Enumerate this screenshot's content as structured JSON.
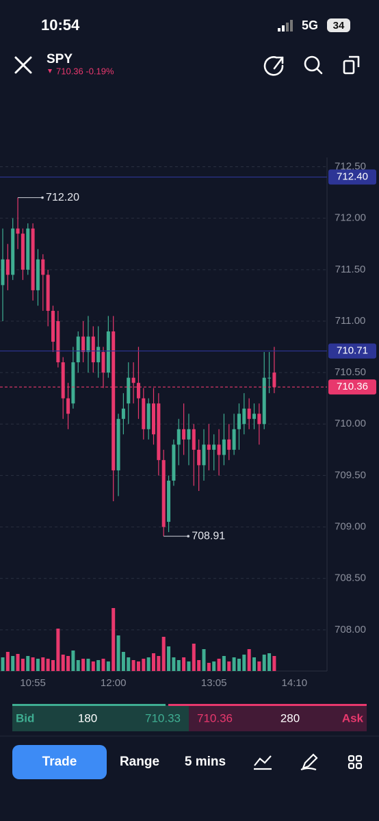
{
  "status_bar": {
    "time": "10:54",
    "network": "5G",
    "battery": "34"
  },
  "header": {
    "symbol": "SPY",
    "quote": "710.36 -0.19%"
  },
  "chart_data": {
    "type": "candlestick",
    "categories": [
      null,
      null,
      null,
      null,
      null,
      null,
      "10:55",
      null,
      null,
      null,
      null,
      null,
      null,
      null,
      null,
      null,
      null,
      null,
      null,
      null,
      null,
      null,
      "12:00",
      null,
      null,
      null,
      null,
      null,
      null,
      null,
      null,
      null,
      null,
      null,
      null,
      null,
      null,
      null,
      null,
      null,
      null,
      null,
      "13:05",
      null,
      null,
      null,
      null,
      null,
      null,
      null,
      null,
      null,
      null,
      null,
      null,
      null,
      null,
      null,
      "14:10"
    ],
    "open": [
      711.35,
      711.6,
      711.45,
      711.9,
      711.85,
      711.5,
      711.9,
      711.3,
      711.6,
      711.45,
      711.1,
      711.0,
      710.6,
      710.25,
      710.2,
      710.6,
      710.85,
      710.7,
      710.85,
      710.6,
      710.7,
      710.5,
      710.9,
      709.55,
      710.05,
      710.2,
      710.45,
      710.4,
      710.25,
      709.95,
      710.2,
      710.2,
      709.65,
      709.05,
      709.45,
      709.8,
      709.95,
      709.85,
      709.95,
      709.75,
      709.6,
      709.8,
      709.75,
      709.8,
      709.7,
      709.85,
      709.75,
      709.95,
      710.0,
      710.15,
      710.05,
      710.1,
      710.0,
      710.45,
      710.5,
      null,
      null,
      null,
      null
    ],
    "high": [
      711.9,
      711.75,
      712.0,
      712.2,
      711.9,
      711.95,
      711.95,
      711.7,
      711.65,
      711.5,
      711.15,
      711.1,
      710.65,
      710.4,
      710.75,
      710.9,
      711.0,
      711.05,
      710.95,
      710.95,
      710.75,
      711.05,
      711.05,
      710.1,
      710.3,
      710.6,
      710.6,
      710.75,
      710.35,
      710.25,
      710.35,
      710.3,
      709.75,
      709.5,
      709.85,
      710.05,
      710.2,
      710.1,
      710.0,
      709.85,
      709.95,
      710.0,
      709.9,
      709.95,
      710.1,
      710.0,
      710.1,
      710.2,
      710.3,
      710.25,
      710.2,
      710.2,
      710.7,
      710.7,
      710.75,
      null,
      null,
      null,
      null
    ],
    "low": [
      711.0,
      711.3,
      711.4,
      711.7,
      711.4,
      711.45,
      711.2,
      711.15,
      711.1,
      710.95,
      710.7,
      710.55,
      710.05,
      709.95,
      710.15,
      710.5,
      710.6,
      710.5,
      710.5,
      710.45,
      710.35,
      710.45,
      709.25,
      709.3,
      709.9,
      710.0,
      710.2,
      710.05,
      709.85,
      709.85,
      709.8,
      709.5,
      708.91,
      708.95,
      709.4,
      709.6,
      709.7,
      709.6,
      709.4,
      709.35,
      709.45,
      709.55,
      709.55,
      709.5,
      709.6,
      709.65,
      709.7,
      709.75,
      709.9,
      709.95,
      709.95,
      709.8,
      709.95,
      710.3,
      710.3,
      null,
      null,
      null,
      null
    ],
    "close": [
      711.6,
      711.45,
      711.9,
      711.85,
      711.5,
      711.9,
      711.3,
      711.6,
      711.45,
      711.1,
      710.8,
      710.6,
      710.25,
      710.1,
      710.6,
      710.85,
      710.7,
      710.85,
      710.6,
      710.75,
      710.5,
      710.9,
      709.55,
      710.05,
      710.15,
      710.45,
      710.4,
      710.25,
      709.95,
      710.2,
      709.9,
      709.65,
      709.0,
      709.45,
      709.8,
      709.95,
      709.85,
      709.95,
      709.75,
      709.6,
      709.8,
      709.75,
      709.8,
      709.7,
      709.85,
      709.75,
      709.95,
      710.1,
      710.15,
      710.05,
      710.1,
      710.0,
      710.45,
      710.45,
      710.36,
      null,
      null,
      null,
      null
    ],
    "volume": [
      20,
      28,
      22,
      25,
      18,
      22,
      20,
      18,
      20,
      18,
      16,
      62,
      24,
      22,
      30,
      16,
      18,
      18,
      14,
      16,
      18,
      14,
      92,
      52,
      28,
      20,
      16,
      14,
      18,
      20,
      26,
      22,
      50,
      36,
      20,
      16,
      20,
      14,
      40,
      16,
      32,
      12,
      14,
      18,
      22,
      14,
      20,
      18,
      24,
      32,
      20,
      14,
      24,
      26,
      22,
      null,
      null,
      null,
      null
    ],
    "up_color": "#3fae92",
    "down_color": "#e8386d",
    "ylim": [
      707.6,
      712.59
    ],
    "yticks": [
      {
        "value": 708,
        "label": "708.00"
      },
      {
        "value": 708.5,
        "label": "708.50"
      },
      {
        "value": 709,
        "label": "709.00"
      },
      {
        "value": 709.5,
        "label": "709.50"
      },
      {
        "value": 710,
        "label": "710.00"
      },
      {
        "value": 710.5,
        "label": "710.50"
      },
      {
        "value": 711,
        "label": "711.00"
      },
      {
        "value": 711.5,
        "label": "711.50"
      },
      {
        "value": 712,
        "label": "712.00"
      },
      {
        "value": 712.5,
        "label": "712.50"
      }
    ],
    "grid": true,
    "hlines": [
      {
        "value": 712.4,
        "label": "712.40",
        "color": "#2d3596",
        "dashed": false
      },
      {
        "value": 710.71,
        "label": "710.71",
        "color": "#2d3596",
        "dashed": false
      },
      {
        "value": 710.36,
        "label": "710.36",
        "color": "#e8386d",
        "dashed": true
      }
    ],
    "annotations": [
      {
        "value": 712.2,
        "label": "712.20"
      },
      {
        "value": 708.91,
        "label": "708.91"
      }
    ]
  },
  "quote_bar": {
    "bid_label": "Bid",
    "bid_size": "180",
    "bid": "710.33",
    "ask": "710.36",
    "ask_size": "280",
    "ask_label": "Ask"
  },
  "toolbar": {
    "trade": "Trade",
    "range": "Range",
    "interval": "5 mins"
  }
}
